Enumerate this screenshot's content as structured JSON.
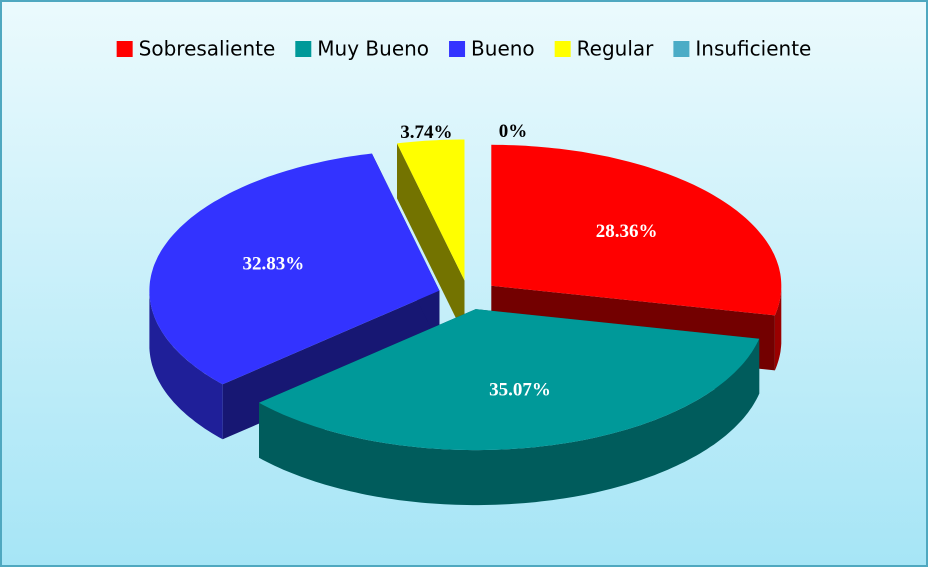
{
  "chart_data": {
    "type": "pie",
    "categories": [
      "Sobresaliente",
      "Muy Bueno",
      "Bueno",
      "Regular",
      "Insuficiente"
    ],
    "values": [
      28.36,
      35.07,
      32.83,
      3.74,
      0
    ],
    "value_labels": [
      "28.36%",
      "35.07%",
      "32.83%",
      "3.74%",
      "0%"
    ],
    "colors": [
      "#ff0000",
      "#009999",
      "#3333ff",
      "#ffff00",
      "#4bacc6"
    ],
    "legend": "top"
  }
}
